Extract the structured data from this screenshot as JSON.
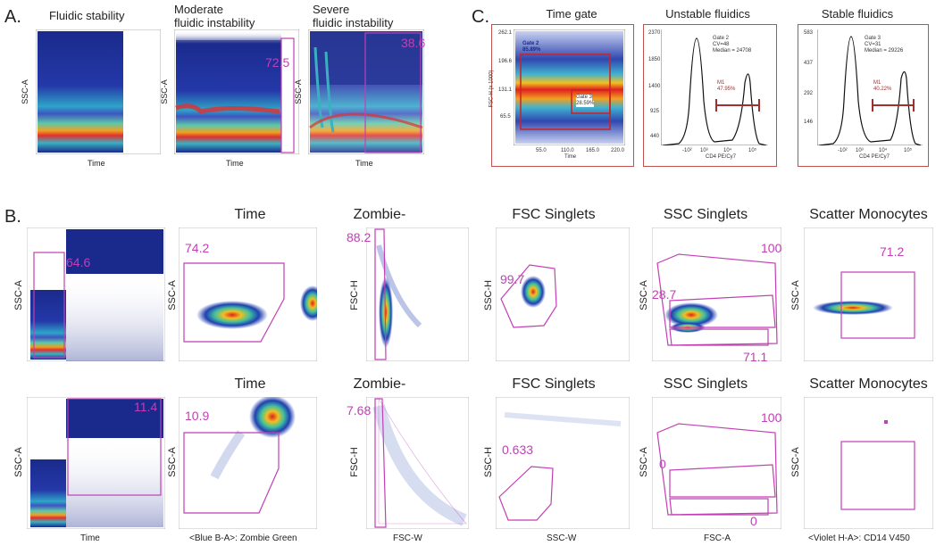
{
  "panels": {
    "A": {
      "letter": "A.",
      "plots": [
        {
          "title": "Fluidic stability",
          "ylabel": "SSC-A",
          "xlabel": "Time",
          "gate": ""
        },
        {
          "title": "Moderate\nfluidic instability",
          "ylabel": "SSC-A",
          "xlabel": "Time",
          "gate": "72.5"
        },
        {
          "title": "Severe\nfluidic instability",
          "ylabel": "SSC-A",
          "xlabel": "Time",
          "gate": "38.6"
        }
      ]
    },
    "C": {
      "letter": "C.",
      "plots": [
        {
          "title": "Time gate",
          "ylabel": "FSC-H (x 1000)",
          "xlabel": "Time",
          "gate2_label": "Gate 2",
          "gate2_pct": "85.89%",
          "gate3_label": "Gate 3",
          "gate3_pct": "28.59%",
          "yticks": [
            "262.1",
            "196.6",
            "131.1",
            "65.5"
          ],
          "xticks": [
            "55.0",
            "110.0",
            "165.0",
            "220.0"
          ]
        },
        {
          "title": "Unstable fluidics",
          "stat1": "Gate 2",
          "stat2": "CV=48",
          "stat3": "Median = 24708",
          "marker": "M1",
          "marker_pct": "47.95%",
          "xlabel": "CD4 PE/Cy7",
          "yticks": [
            "2370",
            "1850",
            "1400",
            "925",
            "440"
          ],
          "xticks": [
            "-10²",
            "10³",
            "10⁴",
            "10⁵"
          ]
        },
        {
          "title": "Stable fluidics",
          "stat1": "Gate 3",
          "stat2": "CV=31",
          "stat3": "Median = 29226",
          "marker": "M1",
          "marker_pct": "40.22%",
          "xlabel": "CD4 PE/Cy7",
          "yticks": [
            "583",
            "437",
            "292",
            "146"
          ],
          "xticks": [
            "-10²",
            "10³",
            "10⁴",
            "10⁵"
          ]
        }
      ]
    },
    "B": {
      "letter": "B.",
      "column_titles": [
        "Time",
        "Zombie-",
        "FSC Singlets",
        "SSC Singlets",
        "Scatter Monocytes"
      ],
      "row1": {
        "plot0": {
          "ylabel": "SSC-A",
          "gate": "64.6"
        },
        "plot1": {
          "ylabel": "SSC-A",
          "gate": "74.2"
        },
        "plot2": {
          "ylabel": "FSC-H",
          "gate": "88.2"
        },
        "plot3": {
          "ylabel": "SSC-H",
          "gate": "99.7"
        },
        "plot4": {
          "ylabel": "SSC-A",
          "gate_a": "100",
          "gate_b": "28.7",
          "gate_c": "71.1"
        },
        "plot5": {
          "ylabel": "SSC-A",
          "gate": "71.2"
        }
      },
      "row2": {
        "plot0": {
          "ylabel": "SSC-A",
          "gate": "11.4",
          "xlabel": "Time"
        },
        "plot1": {
          "ylabel": "SSC-A",
          "gate": "10.9",
          "xlabel": "<Blue B-A>: Zombie Green"
        },
        "plot2": {
          "ylabel": "FSC-H",
          "gate": "7.68",
          "xlabel": "FSC-W"
        },
        "plot3": {
          "ylabel": "SSC-H",
          "gate": "0.633",
          "xlabel": "SSC-W"
        },
        "plot4": {
          "ylabel": "SSC-A",
          "gate_a": "100",
          "gate_b": "0",
          "gate_c": "0",
          "xlabel": "FSC-A"
        },
        "plot5": {
          "ylabel": "SSC-A",
          "xlabel": "<Violet H-A>: CD14 V450"
        }
      }
    }
  }
}
